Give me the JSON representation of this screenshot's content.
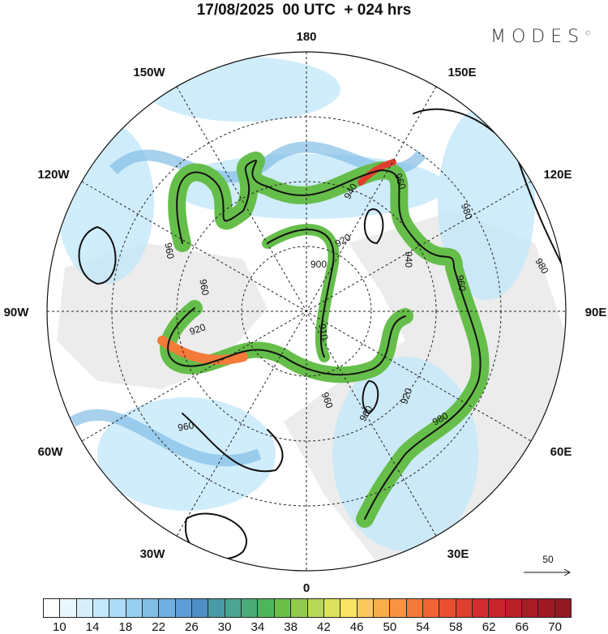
{
  "title": "17/08/2025  00 UTC  + 024 hrs",
  "logo": {
    "text": "MODES",
    "mark": "©"
  },
  "longitude_labels": {
    "n180": "180",
    "e150": "150E",
    "e120": "120E",
    "e90": "90E",
    "e60": "60E",
    "e30": "30E",
    "s0": "0",
    "w30": "30W",
    "w60": "60W",
    "w90": "90W",
    "w120": "120W",
    "w150": "150W"
  },
  "contour_labels": [
    "960",
    "920",
    "960",
    "940",
    "980",
    "980",
    "960",
    "920",
    "910",
    "960",
    "920",
    "900",
    "960",
    "940",
    "960",
    "980",
    "960"
  ],
  "reference_vector": {
    "label": "50",
    "icon": "arrow-right-icon"
  },
  "colorbar": {
    "colors": [
      "#ffffff",
      "#eaf6fd",
      "#d8effb",
      "#c4e8fa",
      "#acdcf7",
      "#96cfef",
      "#82bee6",
      "#70aedf",
      "#5f9dd6",
      "#4f8fc6",
      "#4a9aa6",
      "#4aa592",
      "#4aab78",
      "#4db65a",
      "#6cbf49",
      "#92c853",
      "#b8d65a",
      "#dde25e",
      "#fbe363",
      "#fbc85a",
      "#f9ae4c",
      "#f69443",
      "#f47a3a",
      "#f06433",
      "#e84f2f",
      "#e03e2f",
      "#d52c2f",
      "#c9252d",
      "#b9202a",
      "#a91c25",
      "#9e1a23",
      "#931a22"
    ],
    "labels": [
      "10",
      "14",
      "18",
      "22",
      "26",
      "30",
      "34",
      "38",
      "42",
      "46",
      "50",
      "54",
      "58",
      "62",
      "66",
      "70"
    ]
  }
}
